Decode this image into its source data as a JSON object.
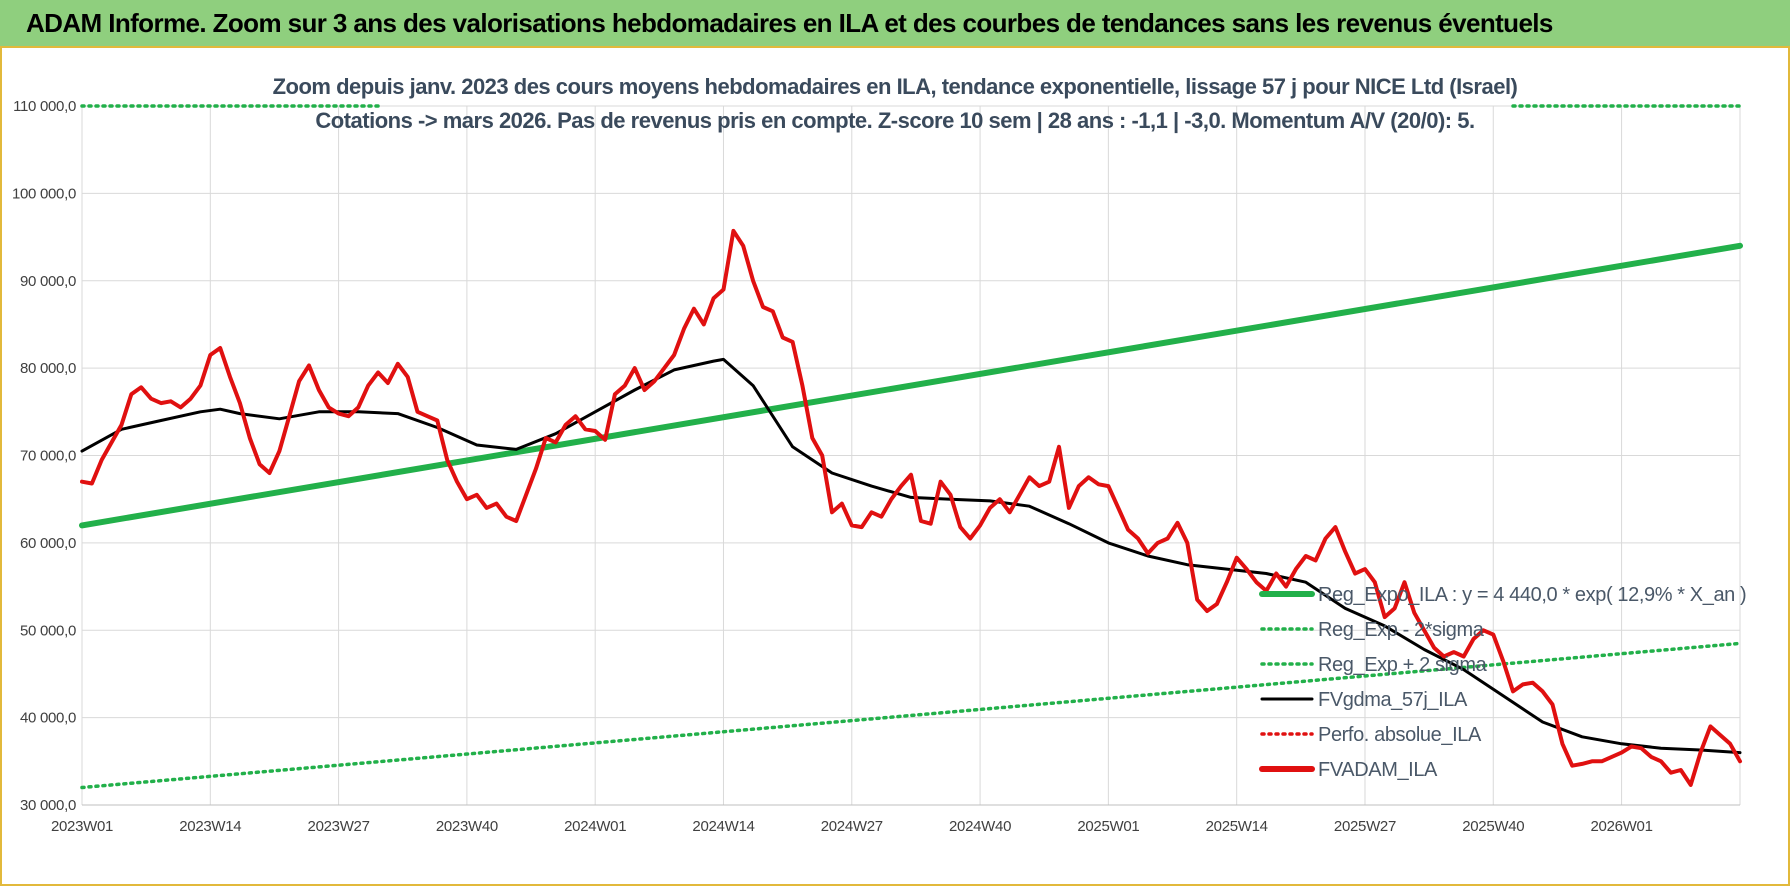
{
  "header": {
    "title": "ADAM Informe. Zoom sur 3 ans des valorisations hebdomadaires en ILA et des courbes de tendances sans les revenus éventuels"
  },
  "chart_data": {
    "type": "line",
    "subtitle_line1": "Zoom depuis janv. 2023 des cours moyens hebdomadaires en ILA, tendance exponentielle, lissage 57 j pour NICE Ltd (Israel)",
    "subtitle_line2": "Cotations -> mars 2026. Pas de revenus pris en compte. Z-score 10 sem | 28 ans : -1,1 | -3,0. Momentum A/V (20/0): 5.",
    "ylim": [
      30000,
      110000
    ],
    "y_ticks": [
      30000,
      40000,
      50000,
      60000,
      70000,
      80000,
      90000,
      100000,
      110000
    ],
    "y_tick_labels": [
      "30 000,0",
      "40 000,0",
      "50 000,0",
      "60 000,0",
      "70 000,0",
      "80 000,0",
      "90 000,0",
      "100 000,0",
      "110 000,0"
    ],
    "x_tick_labels": [
      "2023W01",
      "2023W14",
      "2023W27",
      "2023W40",
      "2024W01",
      "2024W14",
      "2024W27",
      "2024W40",
      "2025W01",
      "2025W14",
      "2025W27",
      "2025W40",
      "2026W01"
    ],
    "x_tick_week_index": [
      0,
      13,
      26,
      39,
      52,
      65,
      78,
      91,
      104,
      117,
      130,
      143,
      156
    ],
    "total_weeks": 168,
    "legend": [
      {
        "label": "Reg_Expo_ILA : y = 4 440,0 * exp( 12,9% * X_an )",
        "color": "#22b04a",
        "style": "solid-thick"
      },
      {
        "label": "Reg_Exp - 2*sigma",
        "color": "#22b04a",
        "style": "dotted"
      },
      {
        "label": "Reg_Exp + 2 sigma",
        "color": "#22b04a",
        "style": "dotted"
      },
      {
        "label": "FVgdma_57j_ILA",
        "color": "#000000",
        "style": "solid"
      },
      {
        "label": "Perfo. absolue_ILA",
        "color": "#e01010",
        "style": "dotted"
      },
      {
        "label": "FVADAM_ILA",
        "color": "#e01010",
        "style": "solid-thick"
      }
    ],
    "series": [
      {
        "name": "Reg_Expo_ILA : y = 4 440,0 * exp( 12,9% * X_an )",
        "color": "#22b04a",
        "x": [
          0,
          168
        ],
        "values": [
          62000,
          94000
        ]
      },
      {
        "name": "Reg_Exp - 2*sigma",
        "color": "#22b04a",
        "x": [
          0,
          168
        ],
        "values": [
          32000,
          48500
        ]
      },
      {
        "name": "Reg_Exp + 2 sigma",
        "color": "#22b04a",
        "x": [
          0,
          30,
          145,
          168
        ],
        "values": [
          110000,
          110000,
          110000,
          110000
        ]
      },
      {
        "name": "FVgdma_57j_ILA",
        "color": "#000000",
        "x": [
          0,
          4,
          8,
          12,
          14,
          16,
          20,
          24,
          28,
          32,
          36,
          40,
          44,
          48,
          52,
          56,
          60,
          64,
          65,
          68,
          72,
          76,
          80,
          84,
          88,
          92,
          96,
          100,
          104,
          108,
          112,
          116,
          120,
          124,
          128,
          132,
          136,
          140,
          144,
          148,
          152,
          156,
          160,
          164,
          168
        ],
        "values": [
          70500,
          73000,
          74000,
          75000,
          75300,
          74800,
          74200,
          75000,
          75000,
          74800,
          73200,
          71200,
          70700,
          72500,
          75000,
          77500,
          79800,
          80800,
          81000,
          78000,
          71000,
          68000,
          66500,
          65200,
          65000,
          64800,
          64200,
          62200,
          60000,
          58500,
          57500,
          57000,
          56500,
          55500,
          52500,
          50500,
          47800,
          45500,
          42500,
          39500,
          37800,
          37000,
          36500,
          36300,
          36000
        ]
      },
      {
        "name": "FVADAM_ILA",
        "color": "#e01010",
        "x": [
          0,
          1,
          2,
          3,
          4,
          5,
          6,
          7,
          8,
          9,
          10,
          11,
          12,
          13,
          14,
          15,
          16,
          17,
          18,
          19,
          20,
          21,
          22,
          23,
          24,
          25,
          26,
          27,
          28,
          29,
          30,
          31,
          32,
          33,
          34,
          35,
          36,
          37,
          38,
          39,
          40,
          41,
          42,
          43,
          44,
          45,
          46,
          47,
          48,
          49,
          50,
          51,
          52,
          53,
          54,
          55,
          56,
          57,
          58,
          59,
          60,
          61,
          62,
          63,
          64,
          65,
          66,
          67,
          68,
          69,
          70,
          71,
          72,
          73,
          74,
          75,
          76,
          77,
          78,
          79,
          80,
          81,
          82,
          83,
          84,
          85,
          86,
          87,
          88,
          89,
          90,
          91,
          92,
          93,
          94,
          95,
          96,
          97,
          98,
          99,
          100,
          101,
          102,
          103,
          104,
          105,
          106,
          107,
          108,
          109,
          110,
          111,
          112,
          113,
          114,
          115,
          116,
          117,
          118,
          119,
          120,
          121,
          122,
          123,
          124,
          125,
          126,
          127,
          128,
          129,
          130,
          131,
          132,
          133,
          134,
          135,
          136,
          137,
          138,
          139,
          140,
          141,
          142,
          143,
          144,
          145,
          146,
          147,
          148,
          149,
          150,
          151,
          152,
          153,
          154,
          155,
          156,
          157,
          158,
          159,
          160,
          161,
          162,
          163,
          164,
          165,
          166,
          167,
          168
        ],
        "values": [
          67000,
          66800,
          69500,
          71500,
          73500,
          77000,
          77800,
          76500,
          76000,
          76200,
          75500,
          76500,
          78000,
          81500,
          82300,
          79000,
          76000,
          72000,
          69000,
          68000,
          70500,
          74500,
          78500,
          80300,
          77500,
          75500,
          74800,
          74500,
          75500,
          78000,
          79500,
          78300,
          80500,
          79000,
          75000,
          74500,
          74000,
          69500,
          67000,
          65000,
          65500,
          64000,
          64500,
          63000,
          62500,
          65500,
          68500,
          72000,
          71500,
          73500,
          74500,
          73000,
          72800,
          71800,
          77000,
          78000,
          80000,
          77500,
          78500,
          80000,
          81500,
          84500,
          86800,
          85000,
          88000,
          89000,
          95700,
          94000,
          90000,
          87000,
          86500,
          83500,
          83000,
          78000,
          72000,
          70000,
          63500,
          64500,
          62000,
          61800,
          63500,
          63000,
          65000,
          66500,
          67800,
          62500,
          62200,
          67000,
          65500,
          61800,
          60500,
          62000,
          64000,
          65000,
          63500,
          65500,
          67500,
          66500,
          67000,
          71000,
          64000,
          66500,
          67500,
          66700,
          66500,
          64000,
          61500,
          60500,
          58800,
          60000,
          60500,
          62300,
          60000,
          53500,
          52200,
          53000,
          55500,
          58300,
          57000,
          55500,
          54500,
          56500,
          55000,
          57000,
          58500,
          58000,
          60500,
          61800,
          59000,
          56500,
          57000,
          55500,
          51500,
          52500,
          55500,
          52000,
          50000,
          48000,
          47000,
          47500,
          47000,
          49000,
          50000,
          49500,
          46500,
          43000,
          43800,
          44000,
          43000,
          41500,
          37000,
          34500,
          34700,
          35000,
          35000,
          35500,
          36000,
          36700,
          36500,
          35500,
          35000,
          33700,
          34000,
          32300,
          36000,
          39000,
          38000,
          37000,
          35000
        ]
      }
    ]
  }
}
